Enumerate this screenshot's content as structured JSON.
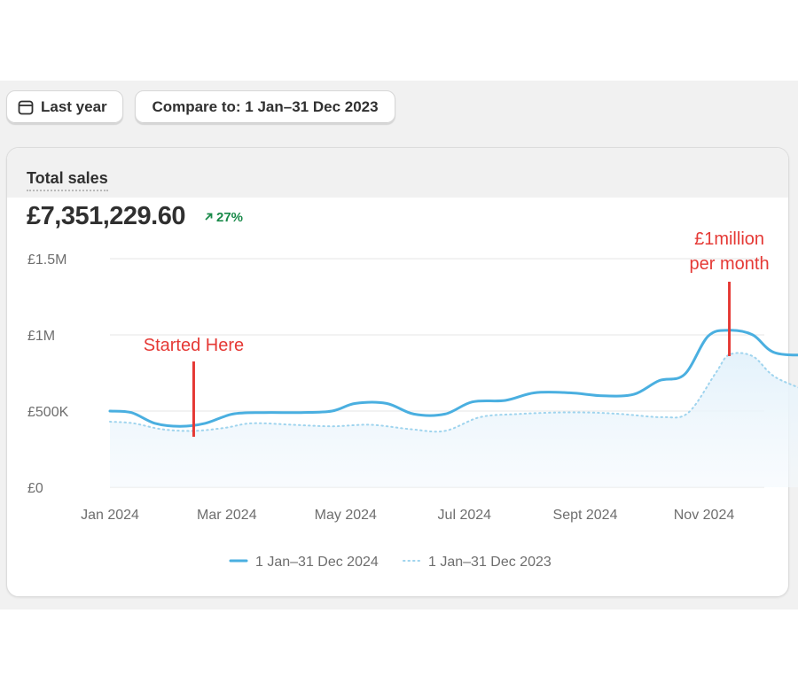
{
  "toolbar": {
    "date_range_label": "Last year",
    "compare_label": "Compare to: 1 Jan–31 Dec 2023"
  },
  "card": {
    "title": "Total sales",
    "total_value": "£7,351,229.60",
    "change_percent": "27%",
    "change_color": "#1a8a4a"
  },
  "colors": {
    "current_series": "#4aafe0",
    "previous_series": "#9fd4ee",
    "annotation": "#e53935"
  },
  "chart_data": {
    "type": "line",
    "title": "Total sales",
    "ylim": [
      0,
      1500000
    ],
    "y_ticks": [
      {
        "value": 0,
        "label": "£0"
      },
      {
        "value": 500000,
        "label": "£500K"
      },
      {
        "value": 1000000,
        "label": "£1M"
      },
      {
        "value": 1500000,
        "label": "£1.5M"
      }
    ],
    "x_range": [
      "2024-01-01",
      "2024-12-31"
    ],
    "x_ticks": [
      {
        "date": "2024-01-01",
        "label": "Jan 2024"
      },
      {
        "date": "2024-03-01",
        "label": "Mar 2024"
      },
      {
        "date": "2024-05-01",
        "label": "May 2024"
      },
      {
        "date": "2024-07-01",
        "label": "Jul 2024"
      },
      {
        "date": "2024-09-01",
        "label": "Sept 2024"
      },
      {
        "date": "2024-11-01",
        "label": "Nov 2024"
      }
    ],
    "grid": true,
    "legend_position": "bottom-center",
    "series": [
      {
        "name": "1 Jan–31 Dec 2024",
        "style": "solid",
        "points": [
          [
            "2024-01-01",
            500000
          ],
          [
            "2024-01-12",
            490000
          ],
          [
            "2024-01-24",
            420000
          ],
          [
            "2024-02-06",
            400000
          ],
          [
            "2024-02-19",
            420000
          ],
          [
            "2024-03-04",
            480000
          ],
          [
            "2024-03-20",
            490000
          ],
          [
            "2024-04-08",
            490000
          ],
          [
            "2024-04-24",
            500000
          ],
          [
            "2024-05-06",
            550000
          ],
          [
            "2024-05-22",
            550000
          ],
          [
            "2024-06-05",
            480000
          ],
          [
            "2024-06-21",
            480000
          ],
          [
            "2024-07-05",
            560000
          ],
          [
            "2024-07-22",
            570000
          ],
          [
            "2024-08-06",
            620000
          ],
          [
            "2024-08-24",
            620000
          ],
          [
            "2024-09-10",
            600000
          ],
          [
            "2024-09-26",
            610000
          ],
          [
            "2024-10-09",
            700000
          ],
          [
            "2024-10-22",
            740000
          ],
          [
            "2024-11-03",
            990000
          ],
          [
            "2024-11-14",
            1030000
          ],
          [
            "2024-11-26",
            1000000
          ],
          [
            "2024-12-08",
            880000
          ],
          [
            "2024-12-31",
            870000
          ]
        ]
      },
      {
        "name": "1 Jan–31 Dec 2023",
        "style": "dotted",
        "points": [
          [
            "2024-01-01",
            430000
          ],
          [
            "2024-01-13",
            420000
          ],
          [
            "2024-01-28",
            380000
          ],
          [
            "2024-02-13",
            370000
          ],
          [
            "2024-02-29",
            390000
          ],
          [
            "2024-03-14",
            420000
          ],
          [
            "2024-04-04",
            410000
          ],
          [
            "2024-04-24",
            400000
          ],
          [
            "2024-05-14",
            410000
          ],
          [
            "2024-06-04",
            380000
          ],
          [
            "2024-06-21",
            370000
          ],
          [
            "2024-07-09",
            460000
          ],
          [
            "2024-07-28",
            480000
          ],
          [
            "2024-08-16",
            490000
          ],
          [
            "2024-09-04",
            490000
          ],
          [
            "2024-09-20",
            480000
          ],
          [
            "2024-10-11",
            460000
          ],
          [
            "2024-10-24",
            490000
          ],
          [
            "2024-11-07",
            750000
          ],
          [
            "2024-11-14",
            870000
          ],
          [
            "2024-11-26",
            860000
          ],
          [
            "2024-12-08",
            720000
          ],
          [
            "2024-12-31",
            600000
          ]
        ]
      }
    ],
    "annotations": [
      {
        "text_lines": [
          "Started Here"
        ],
        "date": "2024-02-13",
        "value": 370000
      },
      {
        "text_lines": [
          "£1million",
          "per month"
        ],
        "date": "2024-11-14",
        "value": 870000
      }
    ]
  }
}
